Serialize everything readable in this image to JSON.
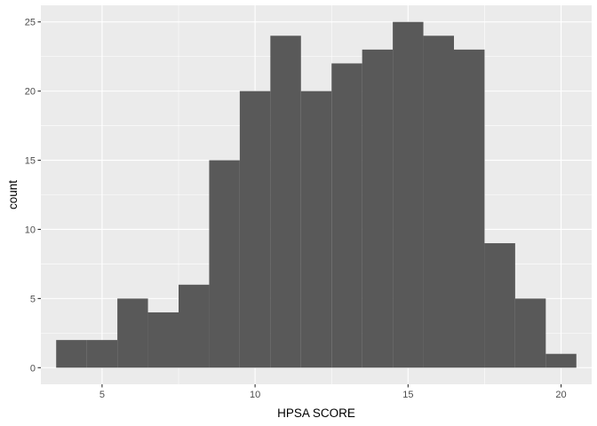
{
  "chart_data": {
    "type": "bar",
    "subtype": "histogram",
    "xlabel": "HPSA SCORE",
    "ylabel": "count",
    "xlim": [
      3.0,
      21.0
    ],
    "ylim": [
      -1.2,
      26.2
    ],
    "x_ticks": [
      5,
      10,
      15,
      20
    ],
    "y_ticks": [
      0,
      5,
      10,
      15,
      20,
      25
    ],
    "x_tick_labels": [
      "5",
      "10",
      "15",
      "20"
    ],
    "y_tick_labels": [
      "0",
      "5",
      "10",
      "15",
      "20",
      "25"
    ],
    "bin_width": 1,
    "bins": [
      {
        "x0": 3.5,
        "x1": 4.5,
        "count": 2
      },
      {
        "x0": 4.5,
        "x1": 5.5,
        "count": 2
      },
      {
        "x0": 5.5,
        "x1": 6.5,
        "count": 5
      },
      {
        "x0": 6.5,
        "x1": 7.5,
        "count": 4
      },
      {
        "x0": 7.5,
        "x1": 8.5,
        "count": 6
      },
      {
        "x0": 8.5,
        "x1": 9.5,
        "count": 15
      },
      {
        "x0": 9.5,
        "x1": 10.5,
        "count": 20
      },
      {
        "x0": 10.5,
        "x1": 11.5,
        "count": 24
      },
      {
        "x0": 11.5,
        "x1": 12.5,
        "count": 20
      },
      {
        "x0": 12.5,
        "x1": 13.5,
        "count": 22
      },
      {
        "x0": 13.5,
        "x1": 14.5,
        "count": 23
      },
      {
        "x0": 14.5,
        "x1": 15.5,
        "count": 25
      },
      {
        "x0": 15.5,
        "x1": 16.5,
        "count": 24
      },
      {
        "x0": 16.5,
        "x1": 17.5,
        "count": 23
      },
      {
        "x0": 17.5,
        "x1": 18.5,
        "count": 9
      },
      {
        "x0": 18.5,
        "x1": 19.5,
        "count": 5
      },
      {
        "x0": 19.5,
        "x1": 20.5,
        "count": 1
      }
    ],
    "bar_color": "#595959",
    "panel_color": "#ebebeb",
    "grid": true,
    "grid_color": "#ffffff",
    "legend": "none"
  }
}
